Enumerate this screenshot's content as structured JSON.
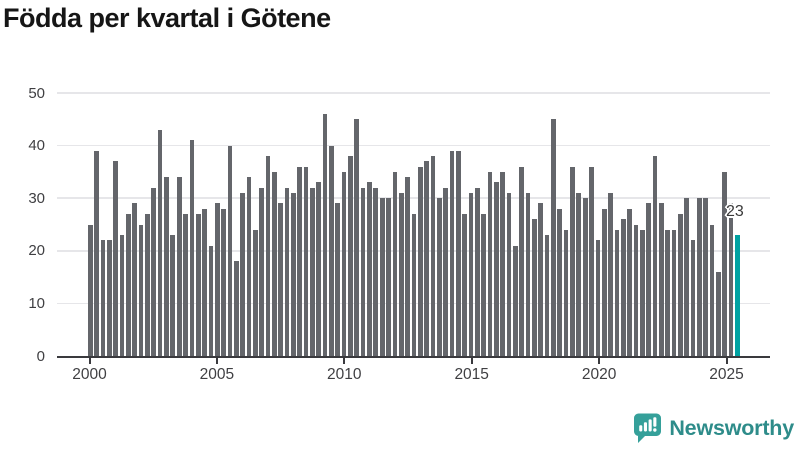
{
  "chart_data": {
    "type": "bar",
    "title": "Födda per kvartal i Götene",
    "frequency": "quarterly",
    "x_range": "2000 Q1 – 2025 Q3",
    "x_tick_labels": [
      "2000",
      "2005",
      "2010",
      "2015",
      "2020",
      "2025"
    ],
    "y_tick_labels": [
      0,
      10,
      20,
      30,
      40,
      50
    ],
    "ylim": [
      0,
      50
    ],
    "grid": "horizontal",
    "legend": "none",
    "series": [
      {
        "name": "Födda per kvartal",
        "values": [
          25,
          39,
          22,
          22,
          37,
          23,
          27,
          29,
          25,
          27,
          32,
          43,
          34,
          23,
          34,
          27,
          41,
          27,
          28,
          21,
          29,
          28,
          40,
          18,
          31,
          34,
          24,
          32,
          38,
          35,
          29,
          32,
          31,
          36,
          36,
          32,
          33,
          46,
          40,
          29,
          35,
          38,
          45,
          32,
          33,
          32,
          30,
          30,
          35,
          31,
          34,
          27,
          36,
          37,
          38,
          30,
          32,
          39,
          39,
          27,
          31,
          32,
          27,
          35,
          33,
          35,
          31,
          21,
          36,
          31,
          26,
          29,
          23,
          45,
          28,
          24,
          36,
          31,
          30,
          36,
          22,
          28,
          31,
          24,
          26,
          28,
          25,
          24,
          29,
          38,
          29,
          24,
          24,
          27,
          30,
          22,
          30,
          30,
          25,
          16,
          35,
          29,
          23
        ]
      }
    ],
    "last_point_label": "23",
    "last_point_value": 23,
    "bar_color": "#64666b",
    "highlight_color": "#00a2a2",
    "gridline_color": "#e6e6e9",
    "axis_line_color": "#3a3a3e",
    "axis_text_color": "#3f3f42",
    "title_color": "#161616"
  },
  "logo": {
    "brand": "Newsworthy",
    "text_color": "#2e8c8a",
    "icon": "bar-chart-speech-bubble-icon",
    "icon_color": "#35a09a"
  }
}
